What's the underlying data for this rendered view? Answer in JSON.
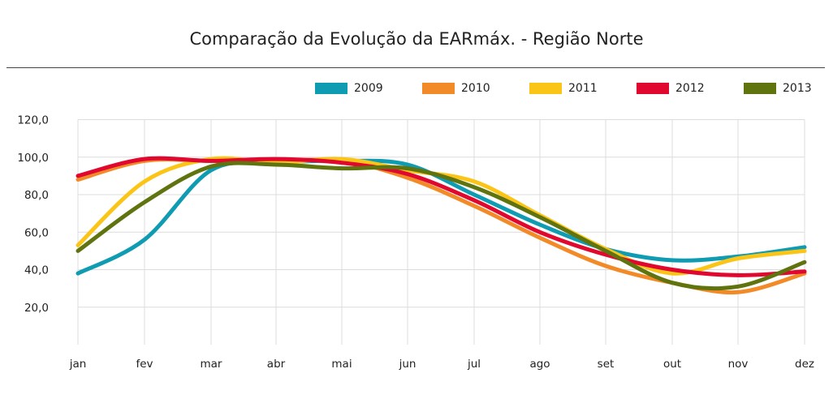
{
  "chart_data": {
    "type": "line",
    "title": "Comparação da Evolução da EARmáx. - Região Norte",
    "xlabel": "",
    "ylabel": "",
    "categories": [
      "jan",
      "fev",
      "mar",
      "abr",
      "mai",
      "jun",
      "jul",
      "ago",
      "set",
      "out",
      "nov",
      "dez"
    ],
    "ylim": [
      0,
      120
    ],
    "yticks": [
      "20,0",
      "40,0",
      "60,0",
      "80,0",
      "100,0",
      "120,0"
    ],
    "grid": true,
    "legend_position": "top-right",
    "series": [
      {
        "name": "2009",
        "color": "#0f9bb2",
        "values": [
          38,
          56,
          93,
          97,
          98,
          96,
          80,
          64,
          51,
          45,
          47,
          52
        ]
      },
      {
        "name": "2010",
        "color": "#f28a28",
        "values": [
          88,
          98,
          98,
          98,
          98,
          89,
          74,
          57,
          42,
          33,
          28,
          38
        ]
      },
      {
        "name": "2011",
        "color": "#fbc518",
        "values": [
          53,
          87,
          99,
          97,
          99,
          93,
          87,
          69,
          51,
          38,
          46,
          50
        ]
      },
      {
        "name": "2012",
        "color": "#e0082e",
        "values": [
          90,
          99,
          98,
          99,
          97,
          91,
          77,
          60,
          48,
          40,
          37,
          39
        ]
      },
      {
        "name": "2013",
        "color": "#5f730e",
        "values": [
          50,
          76,
          95,
          96,
          94,
          94,
          84,
          68,
          50,
          33,
          31,
          44
        ]
      }
    ]
  }
}
